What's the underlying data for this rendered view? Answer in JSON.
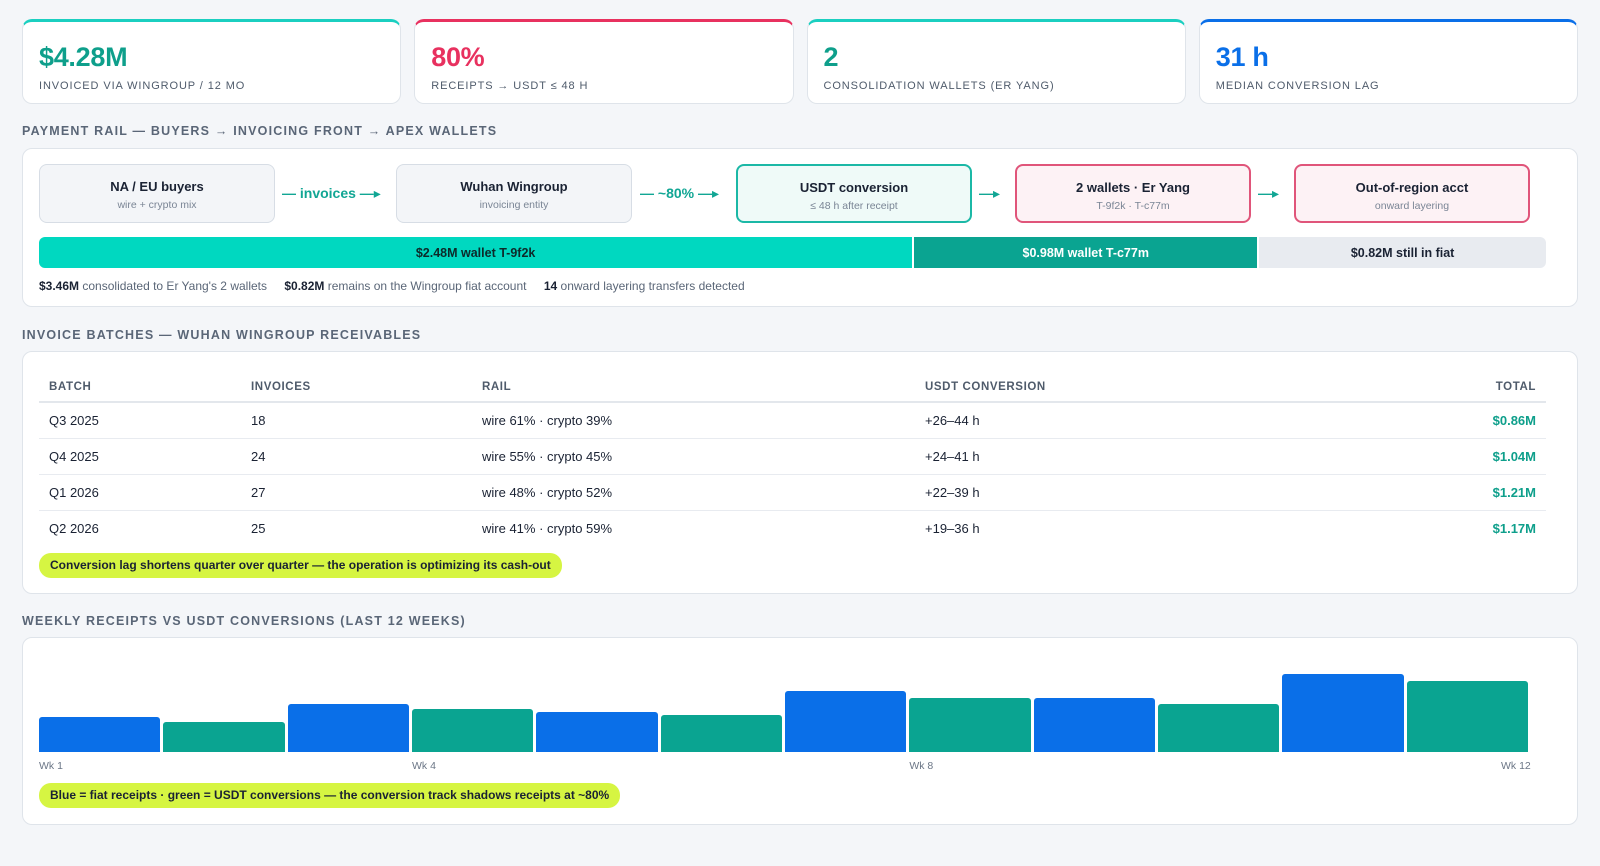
{
  "kpis": [
    {
      "value": "$4.28M",
      "label": "INVOICED VIA WINGROUP / 12 MO",
      "color": "#0e9f8b",
      "accent": "#1bcfc0"
    },
    {
      "value": "80%",
      "label": "RECEIPTS → USDT ≤ 48 H",
      "color": "#e8315f",
      "accent": "#e8315f"
    },
    {
      "value": "2",
      "label": "CONSOLIDATION WALLETS (ER YANG)",
      "color": "#0e9f8b",
      "accent": "#1bcfc0"
    },
    {
      "value": "31 h",
      "label": "MEDIAN CONVERSION LAG",
      "color": "#0a6fe8",
      "accent": "#0a6fe8"
    }
  ],
  "rail": {
    "title": "PAYMENT RAIL — BUYERS → INVOICING FRONT → APEX WALLETS",
    "nodes": [
      {
        "title": "NA / EU buyers",
        "sub": "wire + crypto mix"
      },
      {
        "title": "Wuhan Wingroup",
        "sub": "invoicing entity"
      },
      {
        "title": "USDT conversion",
        "sub": "≤ 48 h after receipt"
      },
      {
        "title": "2 wallets · Er Yang",
        "sub": "T-9f2k · T-c77m"
      },
      {
        "title": "Out-of-region acct",
        "sub": "onward layering"
      }
    ],
    "arrows": [
      "— invoices —▸",
      "— ~80% —▸",
      "—▸",
      "—▸"
    ],
    "segments": [
      {
        "label": "$2.48M wallet T-9f2k",
        "amount": 2.48,
        "bg": "#00d8c0",
        "fg": "#0d2a2a"
      },
      {
        "label": "$0.98M wallet T-c77m",
        "amount": 0.98,
        "bg": "#0aa491",
        "fg": "#ffffff"
      },
      {
        "label": "$0.82M still in fiat",
        "amount": 0.82,
        "bg": "#e8ebf0",
        "fg": "#1a2233"
      }
    ],
    "stats": [
      {
        "value": "$3.46M",
        "text": "consolidated to Er Yang's 2 wallets"
      },
      {
        "value": "$0.82M",
        "text": "remains on the Wingroup fiat account"
      },
      {
        "value": "14",
        "text": "onward layering transfers detected"
      }
    ]
  },
  "batches": {
    "title": "INVOICE BATCHES — WUHAN WINGROUP RECEIVABLES",
    "columns": [
      "BATCH",
      "INVOICES",
      "RAIL",
      "USDT CONVERSION",
      "TOTAL"
    ],
    "rows": [
      {
        "batch": "Q3 2025",
        "invoices": "18",
        "rail": "wire 61% · crypto 39%",
        "conv": "+26–44 h",
        "total": "$0.86M"
      },
      {
        "batch": "Q4 2025",
        "invoices": "24",
        "rail": "wire 55% · crypto 45%",
        "conv": "+24–41 h",
        "total": "$1.04M"
      },
      {
        "batch": "Q1 2026",
        "invoices": "27",
        "rail": "wire 48% · crypto 52%",
        "conv": "+22–39 h",
        "total": "$1.21M"
      },
      {
        "batch": "Q2 2026",
        "invoices": "25",
        "rail": "wire 41% · crypto 59%",
        "conv": "+19–36 h",
        "total": "$1.17M"
      }
    ],
    "note": "Conversion lag shortens quarter over quarter — the operation is optimizing its cash-out"
  },
  "weekly": {
    "title": "WEEKLY RECEIPTS VS USDT CONVERSIONS (LAST 12 WEEKS)",
    "note": "Blue = fiat receipts · green = USDT conversions — the conversion track shadows receipts at ~80%",
    "tick_labels": [
      {
        "week": 1,
        "label": "Wk 1"
      },
      {
        "week": 4,
        "label": "Wk 4"
      },
      {
        "week": 8,
        "label": "Wk 8"
      },
      {
        "week": 12,
        "label": "Wk 12"
      }
    ]
  },
  "chart_data": {
    "type": "bar",
    "categories": [
      "Wk 1",
      "Wk 2",
      "Wk 3",
      "Wk 4",
      "Wk 5",
      "Wk 6",
      "Wk 7",
      "Wk 8",
      "Wk 9",
      "Wk 10",
      "Wk 11",
      "Wk 12"
    ],
    "values": [
      35,
      30,
      48,
      43,
      40,
      37,
      61,
      54,
      54,
      48,
      78,
      71
    ],
    "colors": [
      "#0a6fe8",
      "#0aa491",
      "#0a6fe8",
      "#0aa491",
      "#0a6fe8",
      "#0aa491",
      "#0a6fe8",
      "#0aa491",
      "#0a6fe8",
      "#0aa491",
      "#0a6fe8",
      "#0aa491"
    ],
    "ylim": [
      0,
      100
    ],
    "grid": false,
    "xlabel": "",
    "ylabel": ""
  }
}
